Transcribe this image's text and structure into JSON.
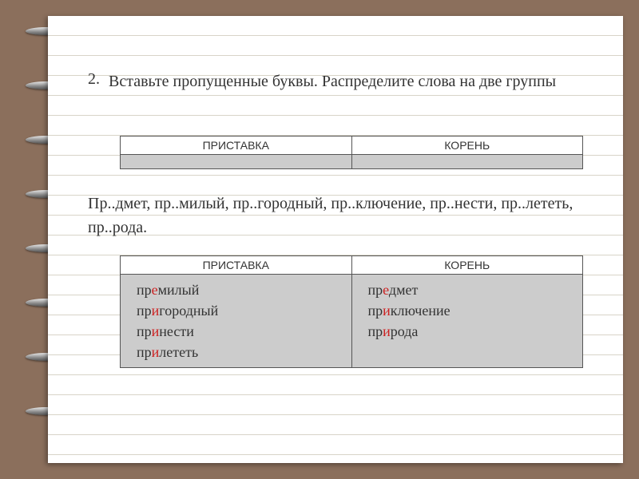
{
  "task": {
    "number": "2.",
    "text": "Вставьте пропущенные буквы. Распределите слова на две группы"
  },
  "table1": {
    "headers": [
      "ПРИСТАВКА",
      "КОРЕНЬ"
    ]
  },
  "wordsLine": "Пр..дмет, пр..милый, пр..городный, пр..ключение, пр..нести, пр..лететь, пр..рода.",
  "table2": {
    "headers": [
      "ПРИСТАВКА",
      "КОРЕНЬ"
    ],
    "left": [
      {
        "pre": "пр",
        "hl": "е",
        "rest": "милый"
      },
      {
        "pre": "пр",
        "hl": "и",
        "rest": "городный"
      },
      {
        "pre": "пр",
        "hl": "и",
        "rest": "нести"
      },
      {
        "pre": "пр",
        "hl": "и",
        "rest": "лететь"
      }
    ],
    "right": [
      {
        "pre": "пр",
        "hl": "е",
        "rest": "дмет"
      },
      {
        "pre": "пр",
        "hl": "и",
        "rest": "ключение"
      },
      {
        "pre": "пр",
        "hl": "и",
        "rest": "рода"
      }
    ]
  },
  "style": {
    "page_bg": "#ffffff",
    "frame_bg": "#8b6f5c",
    "rule_color": "#d8d4c8",
    "cell_bg": "#cccccc",
    "hl_color": "#cc2222",
    "text_color": "#333333",
    "body_font_size_pt": 15,
    "header_font_size_pt": 10
  }
}
